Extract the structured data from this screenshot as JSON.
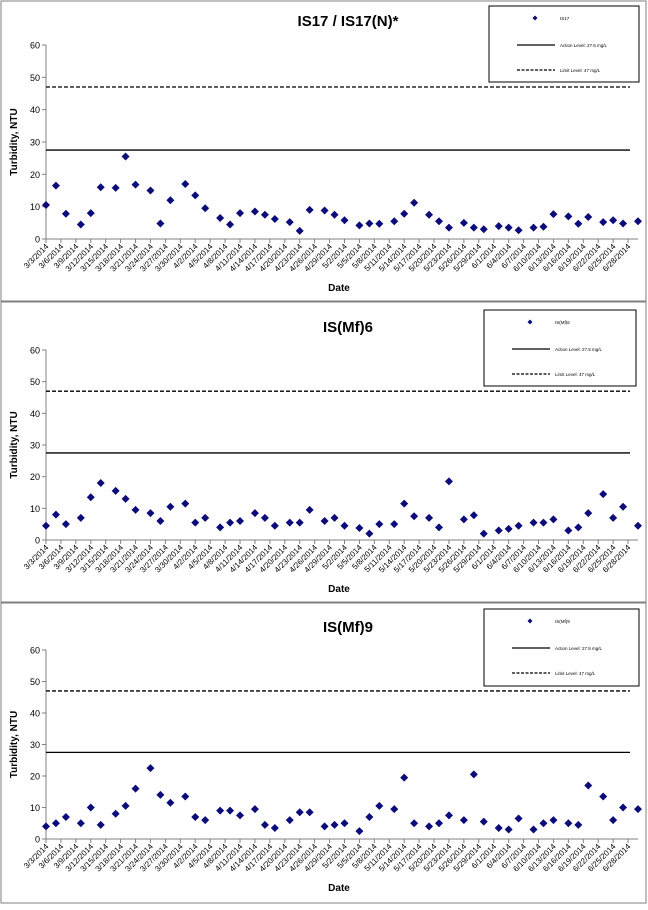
{
  "dates": [
    "3/3/2014",
    "3/6/2014",
    "3/9/2014",
    "3/12/2014",
    "3/15/2014",
    "3/18/2014",
    "3/21/2014",
    "3/24/2014",
    "3/27/2014",
    "3/30/2014",
    "4/2/2014",
    "4/5/2014",
    "4/8/2014",
    "4/11/2014",
    "4/14/2014",
    "4/17/2014",
    "4/20/2014",
    "4/23/2014",
    "4/26/2014",
    "4/29/2014",
    "5/2/2014",
    "5/5/2014",
    "5/8/2014",
    "5/11/2014",
    "5/14/2014",
    "5/17/2014",
    "5/20/2014",
    "5/23/2014",
    "5/26/2014",
    "5/29/2014",
    "6/1/2014",
    "6/4/2014",
    "6/7/2014",
    "6/10/2014",
    "6/13/2014",
    "6/16/2014",
    "6/19/2014",
    "6/22/2014",
    "6/25/2014",
    "6/28/2014"
  ],
  "styles": {
    "marker": "#0b0b7a",
    "line": "#000000",
    "frame": "#7f7f7f"
  },
  "chart_data": [
    {
      "type": "scatter",
      "title": "IS17 / IS17(N)*",
      "xlabel": "Date",
      "ylabel": "Turbidity, NTU",
      "ylim": [
        0,
        60
      ],
      "yticks": [
        0,
        10,
        20,
        30,
        40,
        50,
        60
      ],
      "grid": false,
      "legend_position": "top-right",
      "x_range": [
        "3/3/2014",
        "6/30/2014"
      ],
      "series": [
        {
          "name": "IS17",
          "kind": "points",
          "x": [
            "3/3/2014",
            "3/5/2014",
            "3/7/2014",
            "3/10/2014",
            "3/12/2014",
            "3/14/2014",
            "3/17/2014",
            "3/19/2014",
            "3/21/2014",
            "3/24/2014",
            "3/26/2014",
            "3/28/2014",
            "3/31/2014",
            "4/2/2014",
            "4/4/2014",
            "4/7/2014",
            "4/9/2014",
            "4/11/2014",
            "4/14/2014",
            "4/16/2014",
            "4/18/2014",
            "4/21/2014",
            "4/23/2014",
            "4/25/2014",
            "4/28/2014",
            "4/30/2014",
            "5/2/2014",
            "5/5/2014",
            "5/7/2014",
            "5/9/2014",
            "5/12/2014",
            "5/14/2014",
            "5/16/2014",
            "5/19/2014",
            "5/21/2014",
            "5/23/2014",
            "5/26/2014",
            "5/28/2014",
            "5/30/2014",
            "6/2/2014",
            "6/4/2014",
            "6/6/2014",
            "6/9/2014",
            "6/11/2014",
            "6/13/2014",
            "6/16/2014",
            "6/18/2014",
            "6/20/2014",
            "6/23/2014",
            "6/25/2014",
            "6/27/2014",
            "6/30/2014"
          ],
          "y": [
            10.5,
            16.5,
            7.8,
            4.5,
            8,
            16,
            15.8,
            25.5,
            16.8,
            15,
            4.8,
            12,
            17,
            13.5,
            9.5,
            6.5,
            4.5,
            8,
            8.5,
            7.5,
            6.2,
            5.2,
            2.5,
            9,
            8.8,
            7.5,
            5.8,
            4.2,
            4.8,
            4.7,
            5.5,
            7.8,
            11.2,
            7.5,
            5.5,
            3.5,
            5,
            3.5,
            3,
            4,
            3.5,
            2.7,
            3.5,
            3.8,
            7.7,
            7,
            4.7,
            6.8,
            5.2,
            5.8,
            4.8,
            5.5
          ]
        },
        {
          "name": "Action Level: 27.5 mg/L",
          "kind": "line",
          "value": 27.5
        },
        {
          "name": "Limit Level: 47 mg/L",
          "kind": "dashed",
          "value": 47
        }
      ]
    },
    {
      "type": "scatter",
      "title": "IS(Mf)6",
      "xlabel": "Date",
      "ylabel": "Turbidity, NTU",
      "ylim": [
        0,
        60
      ],
      "yticks": [
        0,
        10,
        20,
        30,
        40,
        50,
        60
      ],
      "grid": false,
      "legend_position": "top-right",
      "x_range": [
        "3/3/2014",
        "6/30/2014"
      ],
      "series": [
        {
          "name": "IS(Mf)6",
          "kind": "points",
          "x": [
            "3/3/2014",
            "3/5/2014",
            "3/7/2014",
            "3/10/2014",
            "3/12/2014",
            "3/14/2014",
            "3/17/2014",
            "3/19/2014",
            "3/21/2014",
            "3/24/2014",
            "3/26/2014",
            "3/28/2014",
            "3/31/2014",
            "4/2/2014",
            "4/4/2014",
            "4/7/2014",
            "4/9/2014",
            "4/11/2014",
            "4/14/2014",
            "4/16/2014",
            "4/18/2014",
            "4/21/2014",
            "4/23/2014",
            "4/25/2014",
            "4/28/2014",
            "4/30/2014",
            "5/2/2014",
            "5/5/2014",
            "5/7/2014",
            "5/9/2014",
            "5/12/2014",
            "5/14/2014",
            "5/16/2014",
            "5/19/2014",
            "5/21/2014",
            "5/23/2014",
            "5/26/2014",
            "5/28/2014",
            "5/30/2014",
            "6/2/2014",
            "6/4/2014",
            "6/6/2014",
            "6/9/2014",
            "6/11/2014",
            "6/13/2014",
            "6/16/2014",
            "6/18/2014",
            "6/20/2014",
            "6/23/2014",
            "6/25/2014",
            "6/27/2014",
            "6/30/2014"
          ],
          "y": [
            4.5,
            8,
            5,
            7,
            13.5,
            18,
            15.5,
            13,
            9.5,
            8.5,
            6,
            10.5,
            11.5,
            5.5,
            7,
            4,
            5.5,
            6,
            8.5,
            7,
            4.5,
            5.5,
            5.5,
            9.5,
            6,
            7,
            4.5,
            3.8,
            2,
            5,
            5,
            11.5,
            7.5,
            7,
            4,
            18.5,
            6.5,
            7.8,
            2,
            3,
            3.5,
            4.5,
            5.5,
            5.5,
            6.5,
            3,
            4,
            8.5,
            14.5,
            7,
            10.5,
            4.5
          ]
        },
        {
          "name": "Action Level: 27.5 mg/L",
          "kind": "line",
          "value": 27.5
        },
        {
          "name": "Limit Level: 47 mg/L",
          "kind": "dashed",
          "value": 47
        }
      ]
    },
    {
      "type": "scatter",
      "title": "IS(Mf)9",
      "xlabel": "Date",
      "ylabel": "Turbidity, NTU",
      "ylim": [
        0,
        60
      ],
      "yticks": [
        0,
        10,
        20,
        30,
        40,
        50,
        60
      ],
      "grid": false,
      "legend_position": "top-right",
      "x_range": [
        "3/3/2014",
        "6/30/2014"
      ],
      "series": [
        {
          "name": "IS(Mf)9",
          "kind": "points",
          "x": [
            "3/3/2014",
            "3/5/2014",
            "3/7/2014",
            "3/10/2014",
            "3/12/2014",
            "3/14/2014",
            "3/17/2014",
            "3/19/2014",
            "3/21/2014",
            "3/24/2014",
            "3/26/2014",
            "3/28/2014",
            "3/31/2014",
            "4/2/2014",
            "4/4/2014",
            "4/7/2014",
            "4/9/2014",
            "4/11/2014",
            "4/14/2014",
            "4/16/2014",
            "4/18/2014",
            "4/21/2014",
            "4/23/2014",
            "4/25/2014",
            "4/28/2014",
            "4/30/2014",
            "5/2/2014",
            "5/5/2014",
            "5/7/2014",
            "5/9/2014",
            "5/12/2014",
            "5/14/2014",
            "5/16/2014",
            "5/19/2014",
            "5/21/2014",
            "5/23/2014",
            "5/26/2014",
            "5/28/2014",
            "5/30/2014",
            "6/2/2014",
            "6/4/2014",
            "6/6/2014",
            "6/9/2014",
            "6/11/2014",
            "6/13/2014",
            "6/16/2014",
            "6/18/2014",
            "6/20/2014",
            "6/23/2014",
            "6/25/2014",
            "6/27/2014",
            "6/30/2014"
          ],
          "y": [
            4,
            5,
            7,
            5,
            10,
            4.5,
            8,
            10.5,
            16,
            22.5,
            14,
            11.5,
            13.5,
            7,
            6,
            9,
            9,
            7.5,
            9.5,
            4.5,
            3.5,
            6,
            8.5,
            8.5,
            4,
            4.5,
            5,
            2.5,
            7,
            10.5,
            9.5,
            19.5,
            5,
            4,
            5,
            7.5,
            6,
            20.5,
            5.5,
            3.5,
            3,
            6.5,
            3,
            5,
            6,
            5,
            4.5,
            17,
            13.5,
            6,
            10,
            9.5
          ]
        },
        {
          "name": "Action Level: 27.5 mg/L",
          "kind": "line",
          "value": 27.5
        },
        {
          "name": "Limit Level: 47 mg/L",
          "kind": "dashed",
          "value": 47
        }
      ]
    }
  ]
}
